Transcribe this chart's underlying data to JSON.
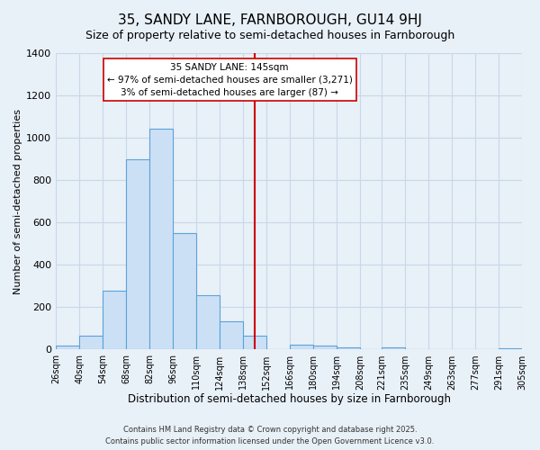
{
  "title": "35, SANDY LANE, FARNBOROUGH, GU14 9HJ",
  "subtitle": "Size of property relative to semi-detached houses in Farnborough",
  "xlabel": "Distribution of semi-detached houses by size in Farnborough",
  "ylabel": "Number of semi-detached properties",
  "bin_edges": [
    26,
    40,
    54,
    68,
    82,
    96,
    110,
    124,
    138,
    152,
    166,
    180,
    194,
    208,
    221,
    235,
    249,
    263,
    277,
    291,
    305
  ],
  "bar_heights": [
    20,
    65,
    280,
    900,
    1045,
    550,
    255,
    135,
    65,
    0,
    25,
    20,
    10,
    0,
    10,
    0,
    0,
    0,
    0,
    5
  ],
  "bar_facecolor": "#cce0f5",
  "bar_edgecolor": "#5ba3d9",
  "property_line_x": 145,
  "property_line_color": "#cc0000",
  "annotation_title": "35 SANDY LANE: 145sqm",
  "annotation_line1": "← 97% of semi-detached houses are smaller (3,271)",
  "annotation_line2": "3% of semi-detached houses are larger (87) →",
  "annotation_box_edgecolor": "#cc0000",
  "annotation_box_facecolor": "#ffffff",
  "ylim": [
    0,
    1400
  ],
  "yticks": [
    0,
    200,
    400,
    600,
    800,
    1000,
    1200,
    1400
  ],
  "grid_color": "#c8d8e8",
  "background_color": "#e8f0f8",
  "footer_line1": "Contains HM Land Registry data © Crown copyright and database right 2025.",
  "footer_line2": "Contains public sector information licensed under the Open Government Licence v3.0.",
  "title_fontsize": 11,
  "subtitle_fontsize": 9,
  "xlabel_fontsize": 8.5,
  "ylabel_fontsize": 8,
  "tick_labels": [
    "26sqm",
    "40sqm",
    "54sqm",
    "68sqm",
    "82sqm",
    "96sqm",
    "110sqm",
    "124sqm",
    "138sqm",
    "152sqm",
    "166sqm",
    "180sqm",
    "194sqm",
    "208sqm",
    "221sqm",
    "235sqm",
    "249sqm",
    "263sqm",
    "277sqm",
    "291sqm",
    "305sqm"
  ]
}
